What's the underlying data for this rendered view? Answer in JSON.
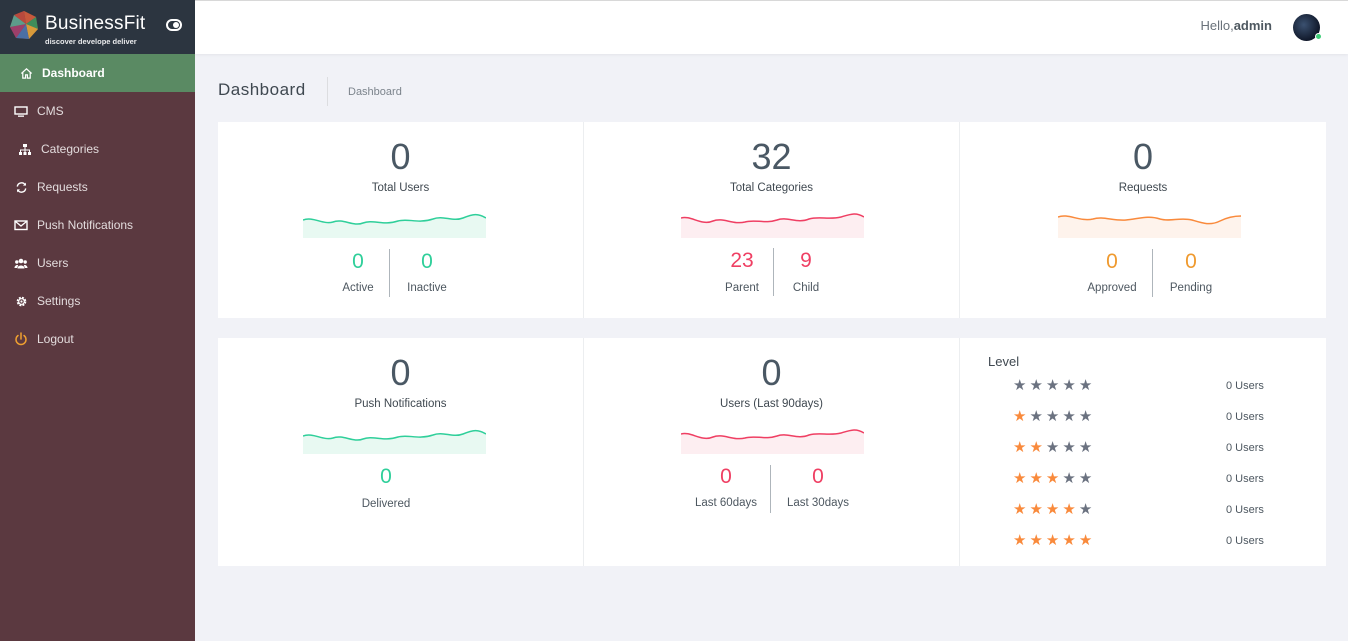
{
  "brand": {
    "name": "BusinessFit",
    "tagline": "discover develope deliver"
  },
  "sidebar": {
    "items": [
      {
        "label": "Dashboard",
        "icon": "home-icon",
        "active": true
      },
      {
        "label": "CMS",
        "icon": "monitor-icon"
      },
      {
        "label": "Categories",
        "icon": "sitemap-icon"
      },
      {
        "label": "Requests",
        "icon": "refresh-icon"
      },
      {
        "label": "Push Notifications",
        "icon": "envelope-icon"
      },
      {
        "label": "Users",
        "icon": "users-icon"
      },
      {
        "label": "Settings",
        "icon": "gear-icon"
      },
      {
        "label": "Logout",
        "icon": "power-icon"
      }
    ]
  },
  "topbar": {
    "greeting": "Hello,",
    "username": "admin"
  },
  "page": {
    "title": "Dashboard",
    "breadcrumb": "Dashboard"
  },
  "stats": {
    "users": {
      "value": "0",
      "label": "Total Users",
      "active": "0",
      "active_label": "Active",
      "inactive": "0",
      "inactive_label": "Inactive"
    },
    "categories": {
      "value": "32",
      "label": "Total Categories",
      "parent": "23",
      "parent_label": "Parent",
      "child": "9",
      "child_label": "Child"
    },
    "requests": {
      "value": "0",
      "label": "Requests",
      "approved": "0",
      "approved_label": "Approved",
      "pending": "0",
      "pending_label": "Pending"
    },
    "push": {
      "value": "0",
      "label": "Push Notifications",
      "delivered": "0",
      "delivered_label": "Delivered"
    },
    "recent_users": {
      "value": "0",
      "label": "Users (Last 90days)",
      "last60": "0",
      "last60_label": "Last 60days",
      "last30": "0",
      "last30_label": "Last 30days"
    }
  },
  "level": {
    "title": "Level",
    "rows": [
      {
        "stars": 0,
        "count": "0 Users"
      },
      {
        "stars": 1,
        "count": "0 Users"
      },
      {
        "stars": 2,
        "count": "0 Users"
      },
      {
        "stars": 3,
        "count": "0 Users"
      },
      {
        "stars": 4,
        "count": "0 Users"
      },
      {
        "stars": 5,
        "count": "0 Users"
      }
    ]
  },
  "colors": {
    "sidebar": "#5b3940",
    "active": "#5a8a63",
    "green": "#2fcf9a",
    "red": "#ef3f63",
    "orange": "#ef9a2f",
    "star_on": "#f98a3c",
    "star_off": "#6b7280"
  }
}
